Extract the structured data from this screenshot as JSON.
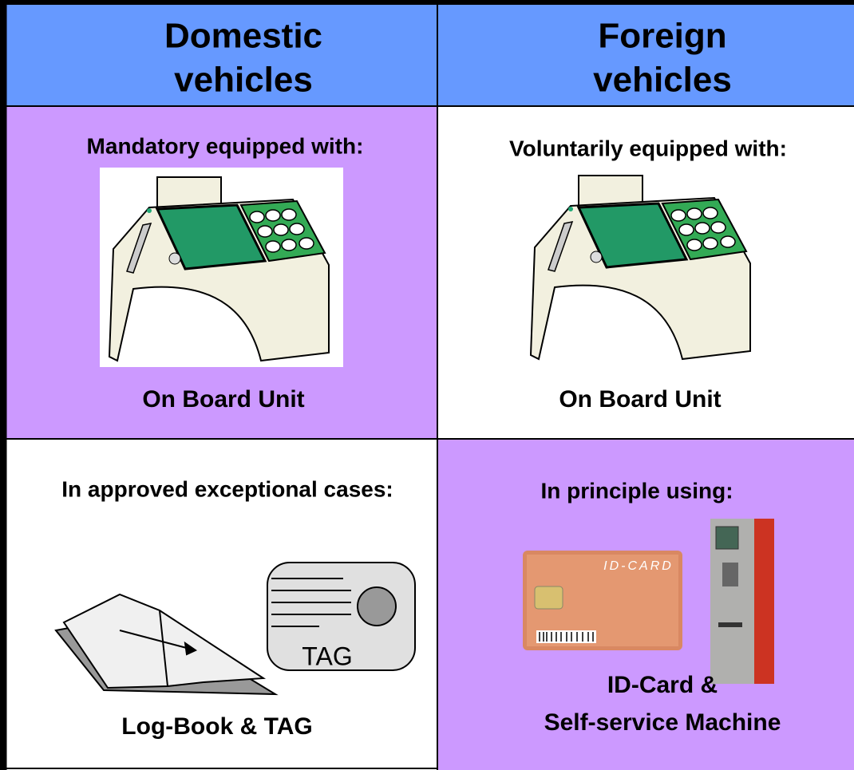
{
  "header": {
    "columns": [
      {
        "lines": [
          "Domestic",
          "vehicles"
        ]
      },
      {
        "lines": [
          "Foreign",
          "vehicles"
        ]
      }
    ]
  },
  "cells": [
    {
      "heading": "Mandatory equipped with:",
      "caption": [
        "On Board Unit"
      ]
    },
    {
      "heading": "Voluntarily equipped with:",
      "caption": [
        "On Board Unit"
      ]
    },
    {
      "heading": "In approved exceptional cases:",
      "caption": [
        "Log-Book & TAG"
      ],
      "icon_label": "TAG"
    },
    {
      "heading": "In principle using:",
      "caption": [
        "ID-Card &",
        "Self-service Machine"
      ],
      "icon_label": "ID-CARD"
    }
  ]
}
